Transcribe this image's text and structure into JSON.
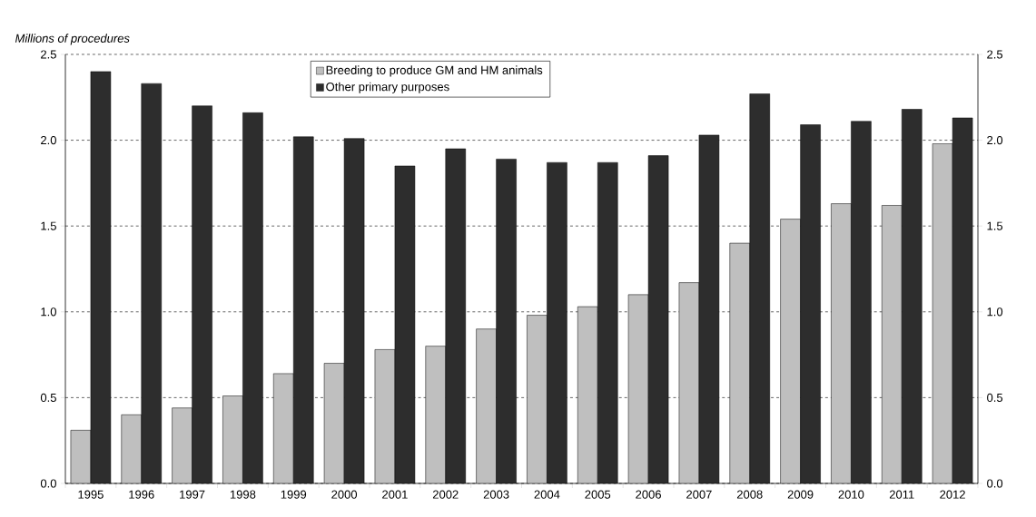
{
  "chart_data": {
    "type": "bar",
    "title": "Millions of procedures",
    "categories": [
      "1995",
      "1996",
      "1997",
      "1998",
      "1999",
      "2000",
      "2001",
      "2002",
      "2003",
      "2004",
      "2005",
      "2006",
      "2007",
      "2008",
      "2009",
      "2010",
      "2011",
      "2012"
    ],
    "series": [
      {
        "name": "Breeding to produce GM and HM animals",
        "color": "#bfbfbf",
        "values": [
          0.31,
          0.4,
          0.44,
          0.51,
          0.64,
          0.7,
          0.78,
          0.8,
          0.9,
          0.98,
          1.03,
          1.1,
          1.17,
          1.4,
          1.54,
          1.63,
          1.62,
          1.98
        ]
      },
      {
        "name": "Other primary purposes",
        "color": "#2d2d2d",
        "values": [
          2.4,
          2.33,
          2.2,
          2.16,
          2.02,
          2.01,
          1.85,
          1.95,
          1.89,
          1.87,
          1.87,
          1.91,
          2.03,
          2.27,
          2.09,
          2.11,
          2.18,
          2.13
        ]
      }
    ],
    "ylim": [
      0,
      2.5
    ],
    "yticks": [
      {
        "value": 0,
        "label": "0.0"
      },
      {
        "value": 0.5,
        "label": "0.5"
      },
      {
        "value": 1,
        "label": "1.0"
      },
      {
        "value": 1.5,
        "label": "1.5"
      },
      {
        "value": 2,
        "label": "2.0"
      },
      {
        "value": 2.5,
        "label": "2.5"
      }
    ],
    "y2lim": [
      0,
      2.5
    ],
    "y2ticks": [
      {
        "value": 0,
        "label": "0.0"
      },
      {
        "value": 0.5,
        "label": "0.5"
      },
      {
        "value": 1,
        "label": "1.0"
      },
      {
        "value": 1.5,
        "label": "1.5"
      },
      {
        "value": 2,
        "label": "2.0"
      },
      {
        "value": 2.5,
        "label": "2.5"
      }
    ],
    "grid": "y",
    "legend": "top"
  }
}
